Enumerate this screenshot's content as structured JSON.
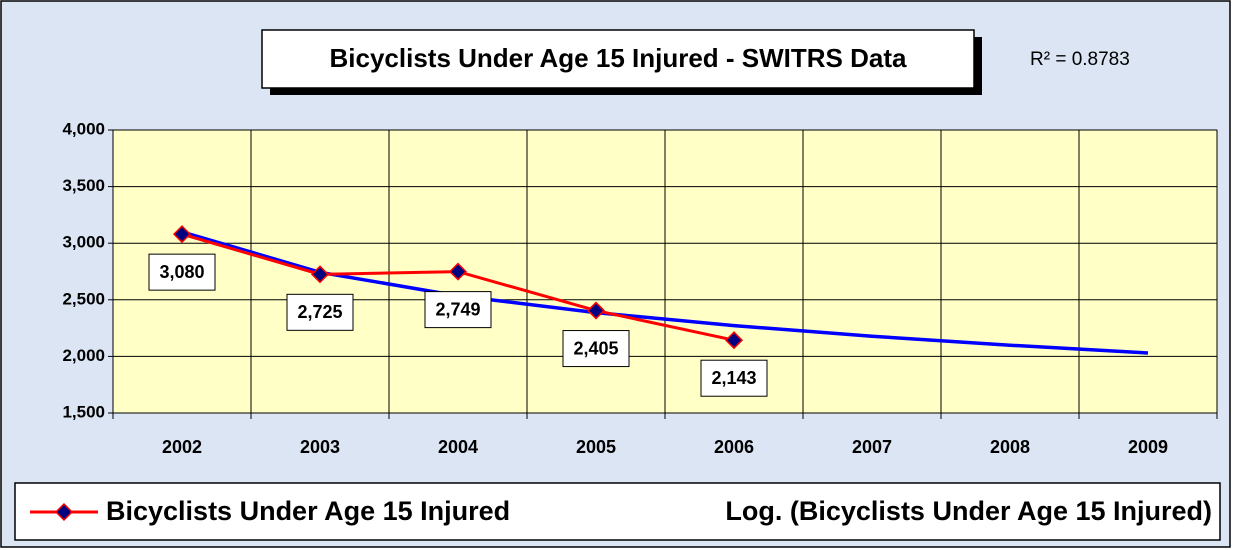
{
  "chart_data": {
    "type": "line",
    "title": "Bicyclists Under Age 15 Injured - SWITRS Data",
    "annotation": "R² = 0.8783",
    "categories": [
      "2002",
      "2003",
      "2004",
      "2005",
      "2006",
      "2007",
      "2008",
      "2009"
    ],
    "series": [
      {
        "name": "Bicyclists Under Age 15 Injured",
        "color": "#ff0000",
        "marker_color": "#000080",
        "values": [
          3080,
          2725,
          2749,
          2405,
          2143,
          null,
          null,
          null
        ],
        "value_labels": [
          "3,080",
          "2,725",
          "2,749",
          "2,405",
          "2,143",
          null,
          null,
          null
        ]
      },
      {
        "name": "Log. (Bicyclists Under Age 15 Injured)",
        "color": "#0000ff",
        "values": [
          3100,
          2743,
          2535,
          2387,
          2272,
          2178,
          2099,
          2030
        ]
      }
    ],
    "ylim": [
      1500,
      4000
    ],
    "yticks": [
      {
        "value": 1500,
        "label": "1,500"
      },
      {
        "value": 2000,
        "label": "2,000"
      },
      {
        "value": 2500,
        "label": "2,500"
      },
      {
        "value": 3000,
        "label": "3,000"
      },
      {
        "value": 3500,
        "label": "3,500"
      },
      {
        "value": 4000,
        "label": "4,000"
      }
    ],
    "grid": true,
    "legend": "bottom"
  }
}
